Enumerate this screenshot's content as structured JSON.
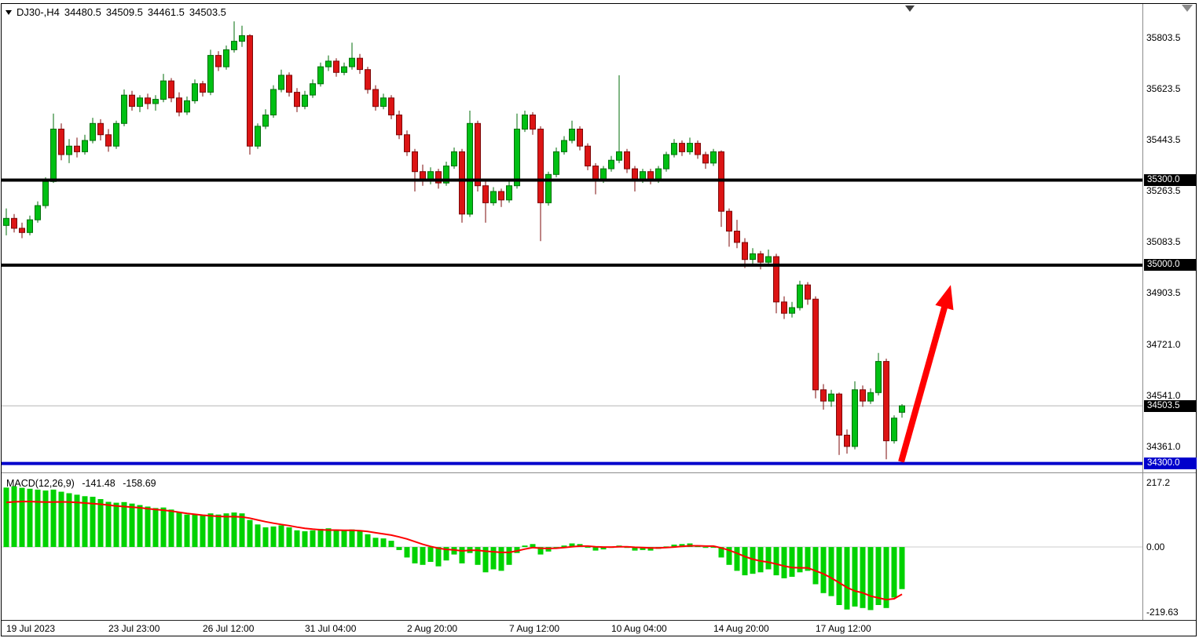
{
  "window": {
    "symbol_period": "DJ30-,H4",
    "ohlc_open": "34480.5",
    "ohlc_high": "34509.5",
    "ohlc_low": "34461.5",
    "ohlc_close": "34503.5"
  },
  "colors": {
    "candle_up": "#00c014",
    "candle_up_border": "#006e0a",
    "candle_down": "#dc1414",
    "candle_down_border": "#7c0808",
    "macd_hist": "#00d200",
    "macd_signal": "#ff0000",
    "hline_black": "#000000",
    "hline_blue": "#0000cc",
    "arrow": "#ff0000"
  },
  "chart_data": {
    "type": "candlestick",
    "title": "DJ30-,H4",
    "legend_position": "none",
    "grid": false,
    "main": {
      "ylim": [
        34274,
        35919
      ],
      "y_ticks": [
        {
          "value": 35803.5,
          "label": "35803.5"
        },
        {
          "value": 35623.5,
          "label": "35623.5"
        },
        {
          "value": 35443.5,
          "label": "35443.5"
        },
        {
          "value": 35263.5,
          "label": "35263.5"
        },
        {
          "value": 35083.5,
          "label": "35083.5"
        },
        {
          "value": 34903.5,
          "label": "34903.5"
        },
        {
          "value": 34721.0,
          "label": "34721.0"
        },
        {
          "value": 34541.0,
          "label": "34541.0"
        },
        {
          "value": 34361.0,
          "label": "34361.0"
        }
      ],
      "hlines": [
        {
          "price": 35300.0,
          "label": "35300.0",
          "color": "#000000",
          "width": 4
        },
        {
          "price": 35000.0,
          "label": "35000.0",
          "color": "#000000",
          "width": 4
        },
        {
          "price": 34300.0,
          "label": "34300.0",
          "color": "#0000cc",
          "width": 4
        }
      ],
      "bid_line": {
        "price": 34503.5,
        "label": "34503.5"
      },
      "arrow": {
        "from_index": 113.9,
        "from_price": 34306,
        "to_index": 120.2,
        "to_price": 34930,
        "color": "#ff0000"
      },
      "candles": [
        [
          35140,
          35200,
          35105,
          35165
        ],
        [
          35165,
          35180,
          35115,
          35130
        ],
        [
          35130,
          35150,
          35095,
          35115
        ],
        [
          35115,
          35175,
          35105,
          35160
        ],
        [
          35160,
          35225,
          35150,
          35210
        ],
        [
          35210,
          35310,
          35200,
          35295
        ],
        [
          35295,
          35535,
          35290,
          35480
        ],
        [
          35480,
          35500,
          35370,
          35390
        ],
        [
          35390,
          35445,
          35360,
          35420
        ],
        [
          35420,
          35450,
          35380,
          35400
        ],
        [
          35400,
          35460,
          35390,
          35440
        ],
        [
          35440,
          35520,
          35430,
          35500
        ],
        [
          35500,
          35515,
          35440,
          35460
        ],
        [
          35460,
          35480,
          35400,
          35420
        ],
        [
          35420,
          35510,
          35410,
          35500
        ],
        [
          35500,
          35620,
          35490,
          35600
        ],
        [
          35600,
          35615,
          35545,
          35560
        ],
        [
          35560,
          35600,
          35540,
          35590
        ],
        [
          35590,
          35605,
          35550,
          35570
        ],
        [
          35570,
          35600,
          35545,
          35585
        ],
        [
          35585,
          35675,
          35575,
          35650
        ],
        [
          35650,
          35660,
          35575,
          35590
        ],
        [
          35590,
          35610,
          35525,
          35540
        ],
        [
          35540,
          35595,
          35530,
          35580
        ],
        [
          35580,
          35655,
          35570,
          35640
        ],
        [
          35640,
          35650,
          35595,
          35610
        ],
        [
          35610,
          35760,
          35600,
          35740
        ],
        [
          35740,
          35755,
          35685,
          35700
        ],
        [
          35700,
          35775,
          35690,
          35760
        ],
        [
          35760,
          35860,
          35750,
          35790
        ],
        [
          35790,
          35845,
          35770,
          35810
        ],
        [
          35810,
          35815,
          35390,
          35420
        ],
        [
          35420,
          35500,
          35410,
          35490
        ],
        [
          35490,
          35550,
          35480,
          35530
        ],
        [
          35530,
          35635,
          35520,
          35620
        ],
        [
          35620,
          35690,
          35610,
          35670
        ],
        [
          35670,
          35680,
          35595,
          35610
        ],
        [
          35610,
          35625,
          35540,
          35560
        ],
        [
          35560,
          35615,
          35550,
          35600
        ],
        [
          35600,
          35655,
          35590,
          35640
        ],
        [
          35640,
          35715,
          35630,
          35700
        ],
        [
          35700,
          35740,
          35685,
          35720
        ],
        [
          35720,
          35730,
          35665,
          35680
        ],
        [
          35680,
          35715,
          35670,
          35700
        ],
        [
          35700,
          35785,
          35690,
          35730
        ],
        [
          35730,
          35745,
          35675,
          35690
        ],
        [
          35690,
          35700,
          35605,
          35620
        ],
        [
          35620,
          35635,
          35545,
          35560
        ],
        [
          35560,
          35605,
          35550,
          35590
        ],
        [
          35590,
          35600,
          35515,
          35530
        ],
        [
          35530,
          35545,
          35445,
          35460
        ],
        [
          35460,
          35475,
          35385,
          35400
        ],
        [
          35400,
          35410,
          35260,
          35330
        ],
        [
          35330,
          35355,
          35280,
          35300
        ],
        [
          35300,
          35345,
          35285,
          35330
        ],
        [
          35330,
          35340,
          35270,
          35290
        ],
        [
          35290,
          35365,
          35280,
          35350
        ],
        [
          35350,
          35415,
          35340,
          35400
        ],
        [
          35400,
          35410,
          35150,
          35180
        ],
        [
          35180,
          35545,
          35170,
          35500
        ],
        [
          35500,
          35510,
          35260,
          35280
        ],
        [
          35280,
          35295,
          35150,
          35220
        ],
        [
          35220,
          35275,
          35210,
          35260
        ],
        [
          35260,
          35270,
          35205,
          35230
        ],
        [
          35230,
          35295,
          35220,
          35280
        ],
        [
          35280,
          35535,
          35270,
          35480
        ],
        [
          35480,
          35545,
          35470,
          35530
        ],
        [
          35530,
          35540,
          35460,
          35480
        ],
        [
          35480,
          35490,
          35085,
          35220
        ],
        [
          35220,
          35330,
          35210,
          35320
        ],
        [
          35320,
          35415,
          35310,
          35400
        ],
        [
          35400,
          35455,
          35390,
          35440
        ],
        [
          35440,
          35510,
          35430,
          35480
        ],
        [
          35480,
          35490,
          35405,
          35420
        ],
        [
          35420,
          35430,
          35335,
          35350
        ],
        [
          35350,
          35360,
          35250,
          35300
        ],
        [
          35300,
          35350,
          35290,
          35340
        ],
        [
          35340,
          35385,
          35330,
          35370
        ],
        [
          35370,
          35670,
          35360,
          35400
        ],
        [
          35400,
          35410,
          35325,
          35340
        ],
        [
          35340,
          35350,
          35260,
          35300
        ],
        [
          35300,
          35340,
          35290,
          35330
        ],
        [
          35330,
          35340,
          35285,
          35300
        ],
        [
          35300,
          35350,
          35290,
          35340
        ],
        [
          35340,
          35400,
          35330,
          35390
        ],
        [
          35390,
          35445,
          35380,
          35430
        ],
        [
          35430,
          35440,
          35385,
          35400
        ],
        [
          35400,
          35450,
          35390,
          35430
        ],
        [
          35430,
          35440,
          35375,
          35390
        ],
        [
          35390,
          35400,
          35340,
          35360
        ],
        [
          35360,
          35410,
          35350,
          35400
        ],
        [
          35400,
          35405,
          35135,
          35190
        ],
        [
          35190,
          35200,
          35065,
          35120
        ],
        [
          35120,
          35160,
          35060,
          35080
        ],
        [
          35080,
          35095,
          34990,
          35020
        ],
        [
          35020,
          35060,
          35000,
          35040
        ],
        [
          35040,
          35050,
          34985,
          35010
        ],
        [
          35010,
          35055,
          35000,
          35030
        ],
        [
          35030,
          35040,
          34830,
          34870
        ],
        [
          34870,
          34890,
          34810,
          34830
        ],
        [
          34830,
          34870,
          34815,
          34850
        ],
        [
          34850,
          34945,
          34840,
          34930
        ],
        [
          34930,
          34940,
          34860,
          34880
        ],
        [
          34880,
          34890,
          34530,
          34560
        ],
        [
          34560,
          34580,
          34490,
          34520
        ],
        [
          34520,
          34560,
          34500,
          34545
        ],
        [
          34545,
          34550,
          34330,
          34400
        ],
        [
          34400,
          34420,
          34335,
          34360
        ],
        [
          34360,
          34590,
          34350,
          34560
        ],
        [
          34560,
          34575,
          34500,
          34520
        ],
        [
          34520,
          34565,
          34510,
          34550
        ],
        [
          34550,
          34690,
          34540,
          34660
        ],
        [
          34660,
          34670,
          34315,
          34380
        ],
        [
          34380,
          34470,
          34370,
          34460
        ],
        [
          34480.5,
          34509.5,
          34461.5,
          34503.5
        ]
      ]
    },
    "macd": {
      "label": "MACD(12,26,9)",
      "value_main": "-141.48",
      "value_signal": "-158.69",
      "ylim": [
        -219.63,
        217.2
      ],
      "y_ticks": [
        {
          "value": 217.2,
          "label": "217.2"
        },
        {
          "value": 0,
          "label": "0.00"
        },
        {
          "value": -219.63,
          "label": "-219.63"
        }
      ],
      "histogram": [
        200,
        204,
        199,
        196,
        193,
        190,
        193,
        186,
        181,
        176,
        171,
        169,
        161,
        152,
        149,
        151,
        146,
        141,
        136,
        131,
        133,
        126,
        116,
        109,
        111,
        106,
        113,
        109,
        113,
        116,
        113,
        91,
        76,
        66,
        69,
        73,
        66,
        56,
        53,
        56,
        61,
        63,
        59,
        56,
        59,
        53,
        43,
        31,
        29,
        21,
        -10,
        -35,
        -55,
        -60,
        -50,
        -65,
        -45,
        -25,
        -55,
        -20,
        -60,
        -85,
        -75,
        -80,
        -60,
        -20,
        5,
        10,
        -25,
        -15,
        -5,
        5,
        12,
        10,
        0,
        -12,
        -8,
        -3,
        5,
        -3,
        -12,
        -10,
        -12,
        -6,
        2,
        8,
        10,
        12,
        5,
        -3,
        0,
        -35,
        -60,
        -80,
        -95,
        -90,
        -85,
        -75,
        -95,
        -105,
        -100,
        -85,
        -80,
        -125,
        -155,
        -165,
        -195,
        -210,
        -200,
        -205,
        -212,
        -195,
        -205,
        -170,
        -141.48
      ],
      "signal": [
        150,
        152,
        153,
        153,
        152,
        151,
        151,
        152,
        151,
        150,
        148,
        146,
        144,
        141,
        138,
        136,
        134,
        132,
        129,
        126,
        124,
        121,
        117,
        113,
        110,
        107,
        105,
        103,
        102,
        102,
        101,
        97,
        91,
        85,
        80,
        76,
        72,
        67,
        63,
        60,
        58,
        57,
        57,
        56,
        56,
        55,
        52,
        48,
        44,
        40,
        34,
        27,
        18,
        9,
        2,
        -4,
        -8,
        -10,
        -13,
        -11,
        -11,
        -14,
        -16,
        -18,
        -18,
        -13,
        -7,
        -2,
        -4,
        -5,
        -4,
        -2,
        1,
        3,
        3,
        1,
        0,
        0,
        1,
        1,
        -1,
        -2,
        -3,
        -3,
        -2,
        0,
        2,
        4,
        4,
        3,
        3,
        -3,
        -11,
        -21,
        -32,
        -41,
        -47,
        -51,
        -57,
        -64,
        -69,
        -70,
        -70,
        -80,
        -90,
        -104,
        -120,
        -136,
        -148,
        -154,
        -165,
        -171,
        -177,
        -174,
        -158.69
      ]
    },
    "x_labels": [
      {
        "text": "19 Jul 2023",
        "index": 0
      },
      {
        "text": "23 Jul 23:00",
        "index": 13
      },
      {
        "text": "26 Jul 12:00",
        "index": 25
      },
      {
        "text": "31 Jul 04:00",
        "index": 38
      },
      {
        "text": "2 Aug 20:00",
        "index": 51
      },
      {
        "text": "7 Aug 12:00",
        "index": 64
      },
      {
        "text": "10 Aug 04:00",
        "index": 77
      },
      {
        "text": "14 Aug 20:00",
        "index": 90
      },
      {
        "text": "17 Aug 12:00",
        "index": 103
      }
    ]
  }
}
